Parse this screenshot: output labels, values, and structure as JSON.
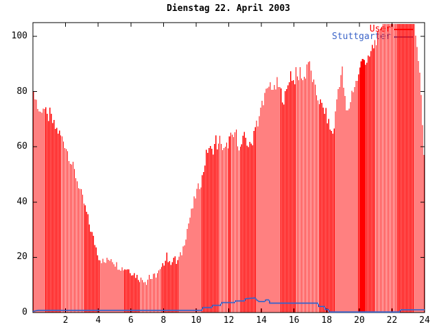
{
  "window": {
    "title": "Dienstag 22. April 2003",
    "background": "#ffffff"
  },
  "chart_data": {
    "type": "bar",
    "style": "gnuplot-impulses-with-line",
    "title": "Dienstag 22. April 2003",
    "xlabel": "",
    "ylabel": "",
    "xlim": [
      0,
      24
    ],
    "ylim": [
      0,
      105
    ],
    "x_ticks": [
      2,
      4,
      6,
      8,
      10,
      12,
      14,
      16,
      18,
      20,
      22,
      24
    ],
    "y_ticks": [
      0,
      20,
      40,
      60,
      80,
      100
    ],
    "grid": "off",
    "legend_position": "top-right-inside",
    "frame_color": "#000000",
    "bars_per_hour": 12,
    "series": [
      {
        "name": "User",
        "type": "impulses",
        "color": "#ff0000",
        "saturation_value": 104.5,
        "solid_ranges": [
          [
            11.98,
            12.12
          ],
          [
            20.12,
            20.32
          ]
        ],
        "points": [
          [
            0.04,
            78
          ],
          [
            0.1,
            80
          ],
          [
            0.2,
            77
          ],
          [
            0.3,
            74
          ],
          [
            0.45,
            72
          ],
          [
            0.6,
            75
          ],
          [
            0.75,
            73
          ],
          [
            0.9,
            70
          ],
          [
            1.05,
            72
          ],
          [
            1.2,
            69
          ],
          [
            1.35,
            67
          ],
          [
            1.5,
            66
          ],
          [
            1.7,
            64
          ],
          [
            1.9,
            62
          ],
          [
            2.1,
            59
          ],
          [
            2.3,
            55
          ],
          [
            2.5,
            52
          ],
          [
            2.7,
            48
          ],
          [
            2.9,
            44
          ],
          [
            3.1,
            40
          ],
          [
            3.3,
            36
          ],
          [
            3.5,
            31
          ],
          [
            3.7,
            27
          ],
          [
            3.9,
            23
          ],
          [
            4.05,
            20
          ],
          [
            4.2,
            19
          ],
          [
            4.4,
            18
          ],
          [
            4.6,
            19
          ],
          [
            4.8,
            20
          ],
          [
            5.0,
            18
          ],
          [
            5.2,
            17
          ],
          [
            5.5,
            16
          ],
          [
            5.8,
            16
          ],
          [
            6.0,
            15
          ],
          [
            6.2,
            14
          ],
          [
            6.4,
            13
          ],
          [
            6.6,
            12
          ],
          [
            6.8,
            12
          ],
          [
            7.0,
            11
          ],
          [
            7.1,
            14
          ],
          [
            7.25,
            12
          ],
          [
            7.4,
            13
          ],
          [
            7.6,
            14
          ],
          [
            7.8,
            15
          ],
          [
            8.0,
            17
          ],
          [
            8.2,
            22
          ],
          [
            8.35,
            17
          ],
          [
            8.5,
            19
          ],
          [
            8.65,
            20
          ],
          [
            8.8,
            18
          ],
          [
            9.0,
            20
          ],
          [
            9.15,
            22
          ],
          [
            9.3,
            26
          ],
          [
            9.45,
            30
          ],
          [
            9.6,
            34
          ],
          [
            9.75,
            37
          ],
          [
            9.9,
            41
          ],
          [
            10.05,
            44
          ],
          [
            10.2,
            46
          ],
          [
            10.35,
            48
          ],
          [
            10.5,
            53
          ],
          [
            10.65,
            58
          ],
          [
            10.8,
            60
          ],
          [
            10.95,
            58
          ],
          [
            11.1,
            60
          ],
          [
            11.2,
            63
          ],
          [
            11.35,
            59
          ],
          [
            11.5,
            64
          ],
          [
            11.65,
            58
          ],
          [
            11.8,
            59
          ],
          [
            11.95,
            61
          ],
          [
            12.1,
            64
          ],
          [
            12.25,
            62
          ],
          [
            12.4,
            66
          ],
          [
            12.55,
            62
          ],
          [
            12.7,
            59
          ],
          [
            12.85,
            62
          ],
          [
            13.0,
            64
          ],
          [
            13.15,
            61
          ],
          [
            13.3,
            60
          ],
          [
            13.45,
            62
          ],
          [
            13.6,
            68
          ],
          [
            13.7,
            70
          ],
          [
            13.8,
            66
          ],
          [
            13.95,
            74
          ],
          [
            14.1,
            77
          ],
          [
            14.25,
            79
          ],
          [
            14.4,
            80
          ],
          [
            14.5,
            83
          ],
          [
            14.65,
            82
          ],
          [
            14.8,
            80
          ],
          [
            14.95,
            83
          ],
          [
            15.1,
            81
          ],
          [
            15.25,
            79
          ],
          [
            15.4,
            77
          ],
          [
            15.55,
            80
          ],
          [
            15.7,
            85
          ],
          [
            15.8,
            87
          ],
          [
            15.9,
            85
          ],
          [
            16.0,
            83
          ],
          [
            16.1,
            87
          ],
          [
            16.25,
            84
          ],
          [
            16.4,
            88
          ],
          [
            16.55,
            84
          ],
          [
            16.7,
            86
          ],
          [
            16.85,
            92
          ],
          [
            17.0,
            88
          ],
          [
            17.15,
            84
          ],
          [
            17.3,
            80
          ],
          [
            17.45,
            78
          ],
          [
            17.6,
            76
          ],
          [
            17.75,
            74
          ],
          [
            17.9,
            73
          ],
          [
            18.05,
            70
          ],
          [
            18.2,
            67
          ],
          [
            18.35,
            64
          ],
          [
            18.5,
            69
          ],
          [
            18.65,
            79
          ],
          [
            18.8,
            84
          ],
          [
            18.95,
            88
          ],
          [
            19.1,
            78
          ],
          [
            19.25,
            71
          ],
          [
            19.4,
            75
          ],
          [
            19.55,
            80
          ],
          [
            19.7,
            82
          ],
          [
            19.85,
            84
          ],
          [
            20.0,
            86
          ],
          [
            20.1,
            90
          ],
          [
            20.2,
            94
          ],
          [
            20.3,
            92
          ],
          [
            20.45,
            89
          ],
          [
            20.6,
            92
          ],
          [
            20.75,
            95
          ],
          [
            20.9,
            97
          ],
          [
            21.05,
            99
          ],
          [
            21.2,
            101
          ],
          [
            21.35,
            103
          ],
          [
            21.5,
            104.5
          ],
          [
            22.0,
            104.5
          ],
          [
            22.5,
            104.5
          ],
          [
            23.0,
            104.5
          ],
          [
            23.35,
            104.5
          ],
          [
            23.45,
            101
          ],
          [
            23.55,
            97
          ],
          [
            23.65,
            90
          ],
          [
            23.72,
            84
          ],
          [
            23.8,
            78
          ],
          [
            23.88,
            68
          ],
          [
            23.96,
            58
          ]
        ]
      },
      {
        "name": "Stuttgarter",
        "type": "line",
        "color": "#3b64c8",
        "points": [
          [
            0.0,
            0.4
          ],
          [
            0.3,
            0.8
          ],
          [
            10.35,
            0.8
          ],
          [
            10.42,
            1.8
          ],
          [
            10.95,
            1.8
          ],
          [
            11.02,
            2.6
          ],
          [
            11.5,
            2.6
          ],
          [
            11.57,
            3.6
          ],
          [
            12.35,
            3.6
          ],
          [
            12.42,
            4.2
          ],
          [
            12.95,
            4.2
          ],
          [
            13.02,
            5.0
          ],
          [
            13.45,
            5.2
          ],
          [
            13.6,
            5.3
          ],
          [
            13.7,
            4.6
          ],
          [
            13.85,
            4.0
          ],
          [
            14.2,
            4.0
          ],
          [
            14.28,
            4.6
          ],
          [
            14.45,
            4.6
          ],
          [
            14.52,
            3.4
          ],
          [
            17.45,
            3.4
          ],
          [
            17.52,
            2.2
          ],
          [
            17.85,
            2.2
          ],
          [
            17.92,
            1.1
          ],
          [
            18.1,
            1.1
          ],
          [
            18.18,
            0.2
          ],
          [
            22.45,
            0.2
          ],
          [
            22.55,
            1.0
          ],
          [
            24.0,
            1.0
          ]
        ]
      }
    ]
  },
  "legend": {
    "user_label": "User",
    "stuttgarter_label": "Stuttgarter",
    "user_color": "#ff0000",
    "stuttgarter_color": "#3b64c8"
  }
}
